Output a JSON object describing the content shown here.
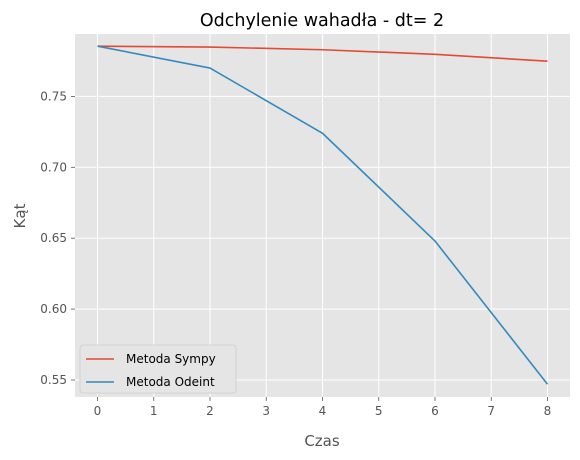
{
  "chart_data": {
    "type": "line",
    "title": "Odchylenie wahadła - dt= 2",
    "xlabel": "Czas",
    "ylabel": "Kąt",
    "xlim": [
      -0.4,
      8.4
    ],
    "ylim": [
      0.538,
      0.794
    ],
    "xticks": [
      0,
      1,
      2,
      3,
      4,
      5,
      6,
      7,
      8
    ],
    "yticks": [
      0.55,
      0.6,
      0.65,
      0.7,
      0.75
    ],
    "ytick_labels": [
      "0.55",
      "0.60",
      "0.65",
      "0.70",
      "0.75"
    ],
    "grid": true,
    "legend_position": "lower-left",
    "series": [
      {
        "name": "Metoda Sympy",
        "color": "#E24A33",
        "x": [
          0,
          2,
          4,
          6,
          8
        ],
        "y": [
          0.7854,
          0.7848,
          0.7829,
          0.7797,
          0.7748
        ]
      },
      {
        "name": "Metoda Odeint",
        "color": "#348ABD",
        "x": [
          0,
          2,
          4,
          6,
          8
        ],
        "y": [
          0.7854,
          0.77,
          0.724,
          0.648,
          0.547
        ]
      }
    ]
  }
}
